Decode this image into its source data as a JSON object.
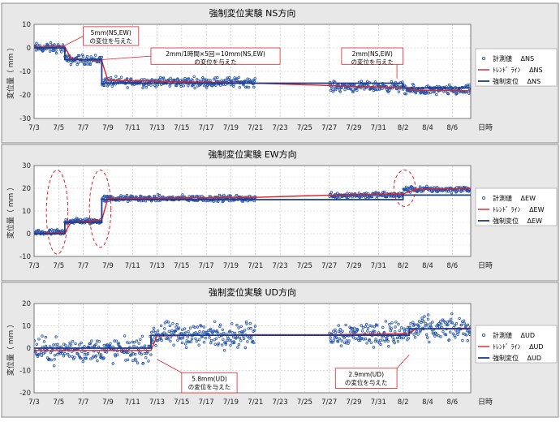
{
  "x_unit_label": "日時",
  "ylabel": "変位量（ mm ）",
  "x_dates": [
    "7/3",
    "7/5",
    "7/7",
    "7/9",
    "7/11",
    "7/13",
    "7/15",
    "7/17",
    "7/19",
    "7/21",
    "7/23",
    "7/25",
    "7/27",
    "7/29",
    "7/31",
    "8/2",
    "8/4",
    "8/6"
  ],
  "colors": {
    "measured": "#2050a8",
    "trend": "#e0202a",
    "forced": "#1a3c8c",
    "annotation": "#e0202a",
    "panel_bg": "#e8e8e8"
  },
  "chart_data": [
    {
      "type": "scatter",
      "title": "強制変位実験 NS方向",
      "xlim": [
        "7/3 00:00",
        "8/7 12:00"
      ],
      "ylim": [
        -30,
        10
      ],
      "yticks": [
        -30,
        -20,
        -10,
        0,
        10
      ],
      "legend_position": "right",
      "series": [
        {
          "name": "計測値　 ΔNS",
          "kind": "points",
          "segments": [
            {
              "x": [
                "7/3 00:00",
                "7/5 12:00"
              ],
              "base": 0,
              "noise": 3
            },
            {
              "x": [
                "7/5 12:00",
                "7/8 12:00"
              ],
              "base": -5,
              "noise": 3
            },
            {
              "x": [
                "7/8 12:00",
                "7/21 00:00"
              ],
              "base": -14.5,
              "noise": 3
            },
            {
              "x": [
                "7/27 00:00",
                "8/2 00:00"
              ],
              "base": -16.5,
              "noise": 3
            },
            {
              "x": [
                "8/2 00:00",
                "8/7 12:00"
              ],
              "base": -18,
              "noise": 3
            }
          ]
        },
        {
          "name": "ﾄﾚﾝﾄﾞ ﾗｲﾝ　 ΔNS",
          "kind": "trend",
          "points": [
            [
              "7/3 00:00",
              0.3
            ],
            [
              "7/5 12:00",
              0.5
            ],
            [
              "7/6 00:00",
              -4.5
            ],
            [
              "7/8 12:00",
              -5.5
            ],
            [
              "7/9 00:00",
              -13.8
            ],
            [
              "7/21 00:00",
              -15
            ],
            [
              "7/27 00:00",
              -16
            ],
            [
              "8/2 00:00",
              -17
            ],
            [
              "8/3 00:00",
              -18
            ],
            [
              "8/7 12:00",
              -18.2
            ]
          ]
        },
        {
          "name": "強制変位　 ΔNS",
          "kind": "step",
          "points": [
            [
              "7/3 00:00",
              0
            ],
            [
              "7/5 12:00",
              0
            ],
            [
              "7/5 12:00",
              -5
            ],
            [
              "7/8 12:00",
              -5
            ],
            [
              "7/8 12:00",
              -15
            ],
            [
              "8/2 00:00",
              -15
            ],
            [
              "8/2 00:00",
              -17
            ],
            [
              "8/7 12:00",
              -17
            ]
          ]
        }
      ],
      "annotations": [
        {
          "lines": [
            "5mm(NS,EW)",
            "の変位を与えた"
          ],
          "box": [
            "7/7 00:00",
            9,
            "7/11 12:00",
            1
          ],
          "pointer": [
            "7/5 12:00",
            1
          ]
        },
        {
          "lines": [
            "2mm/1時間×5回＝10mm(NS,EW)",
            "の変位を与えた"
          ],
          "box": [
            "7/12 12:00",
            0,
            "7/23 00:00",
            -7
          ],
          "pointer": [
            "7/8 12:00",
            -5
          ]
        },
        {
          "lines": [
            "2mm(NS,EW)",
            "の変位を与えた"
          ],
          "box": [
            "7/28 00:00",
            0,
            "8/2 00:00",
            -7
          ],
          "pointer": [
            "8/1 12:00",
            -13
          ]
        }
      ]
    },
    {
      "type": "scatter",
      "title": "強制変位実験 EW方向",
      "xlim": [
        "7/3 00:00",
        "8/7 12:00"
      ],
      "ylim": [
        -10,
        30
      ],
      "yticks": [
        -10,
        0,
        10,
        20,
        30
      ],
      "legend_position": "right",
      "series": [
        {
          "name": "計測値　 ΔEW",
          "kind": "points",
          "segments": [
            {
              "x": [
                "7/3 00:00",
                "7/5 12:00"
              ],
              "base": 0.5,
              "noise": 2
            },
            {
              "x": [
                "7/5 12:00",
                "7/8 12:00"
              ],
              "base": 5.5,
              "noise": 2
            },
            {
              "x": [
                "7/8 12:00",
                "7/21 00:00"
              ],
              "base": 15.5,
              "noise": 2
            },
            {
              "x": [
                "7/27 00:00",
                "8/2 00:00"
              ],
              "base": 17,
              "noise": 2
            },
            {
              "x": [
                "8/2 00:00",
                "8/7 12:00"
              ],
              "base": 19.5,
              "noise": 2
            }
          ]
        },
        {
          "name": "ﾄﾚﾝﾄﾞ ﾗｲﾝ　 ΔEW",
          "kind": "trend",
          "points": [
            [
              "7/3 00:00",
              0
            ],
            [
              "7/5 12:00",
              0.5
            ],
            [
              "7/6 00:00",
              5
            ],
            [
              "7/8 12:00",
              6
            ],
            [
              "7/9 00:00",
              15.5
            ],
            [
              "7/21 00:00",
              16
            ],
            [
              "7/27 00:00",
              17
            ],
            [
              "8/2 00:00",
              17.5
            ],
            [
              "8/3 00:00",
              19.5
            ],
            [
              "8/7 12:00",
              20
            ]
          ]
        },
        {
          "name": "強制変位　 ΔEW",
          "kind": "step",
          "points": [
            [
              "7/3 00:00",
              0
            ],
            [
              "7/5 12:00",
              0
            ],
            [
              "7/5 12:00",
              5
            ],
            [
              "7/8 12:00",
              5
            ],
            [
              "7/8 12:00",
              15
            ],
            [
              "8/2 00:00",
              15
            ],
            [
              "8/2 00:00",
              17
            ],
            [
              "8/7 12:00",
              17
            ]
          ]
        }
      ],
      "annotations": [
        {
          "ellipse": [
            "7/4 00:00",
            28,
            "7/5 18:00",
            -9
          ]
        },
        {
          "ellipse": [
            "7/7 12:00",
            28,
            "7/9 06:00",
            -6
          ]
        },
        {
          "ellipse": [
            "8/1 06:00",
            28,
            "8/3 00:00",
            12
          ]
        }
      ]
    },
    {
      "type": "scatter",
      "title": "強制変位実験 UD方向",
      "xlim": [
        "7/3 00:00",
        "8/7 12:00"
      ],
      "ylim": [
        -20,
        20
      ],
      "yticks": [
        -20,
        -10,
        0,
        10,
        20
      ],
      "legend_position": "right",
      "series": [
        {
          "name": "計測値　 ΔUD",
          "kind": "points",
          "segments": [
            {
              "x": [
                "7/3 00:00",
                "7/12 12:00"
              ],
              "base": -1,
              "noise": 8
            },
            {
              "x": [
                "7/12 12:00",
                "7/21 00:00"
              ],
              "base": 6,
              "noise": 8
            },
            {
              "x": [
                "7/27 00:00",
                "8/2 12:00"
              ],
              "base": 6.5,
              "noise": 8
            },
            {
              "x": [
                "8/2 12:00",
                "8/7 12:00"
              ],
              "base": 8.5,
              "noise": 8
            }
          ]
        },
        {
          "name": "ﾄﾚﾝﾄﾞ ﾗｲﾝ　 ΔUD",
          "kind": "trend",
          "points": [
            [
              "7/3 00:00",
              -1
            ],
            [
              "7/12 12:00",
              -1
            ],
            [
              "7/13 00:00",
              5.5
            ],
            [
              "7/21 00:00",
              6
            ],
            [
              "7/27 00:00",
              6
            ],
            [
              "8/2 12:00",
              6.5
            ],
            [
              "8/3 00:00",
              8.5
            ],
            [
              "8/7 12:00",
              9
            ]
          ]
        },
        {
          "name": "強制変位　 ΔUD",
          "kind": "step",
          "points": [
            [
              "7/3 00:00",
              0
            ],
            [
              "7/12 12:00",
              0
            ],
            [
              "7/12 12:00",
              5.8
            ],
            [
              "8/2 12:00",
              5.8
            ],
            [
              "8/2 12:00",
              8.7
            ],
            [
              "8/7 12:00",
              8.7
            ]
          ]
        }
      ],
      "annotations": [
        {
          "lines": [
            "5.8mm(UD)",
            "の変位を与えた"
          ],
          "box": [
            "7/15 00:00",
            -11,
            "7/19 12:00",
            -20
          ],
          "pointer": [
            "7/13 00:00",
            -5
          ]
        },
        {
          "lines": [
            "2.9mm(UD)",
            "の変位を与えた"
          ],
          "box": [
            "7/27 12:00",
            -9,
            "8/1 12:00",
            -18
          ],
          "pointer": [
            "8/2 12:00",
            -3
          ]
        }
      ]
    }
  ]
}
